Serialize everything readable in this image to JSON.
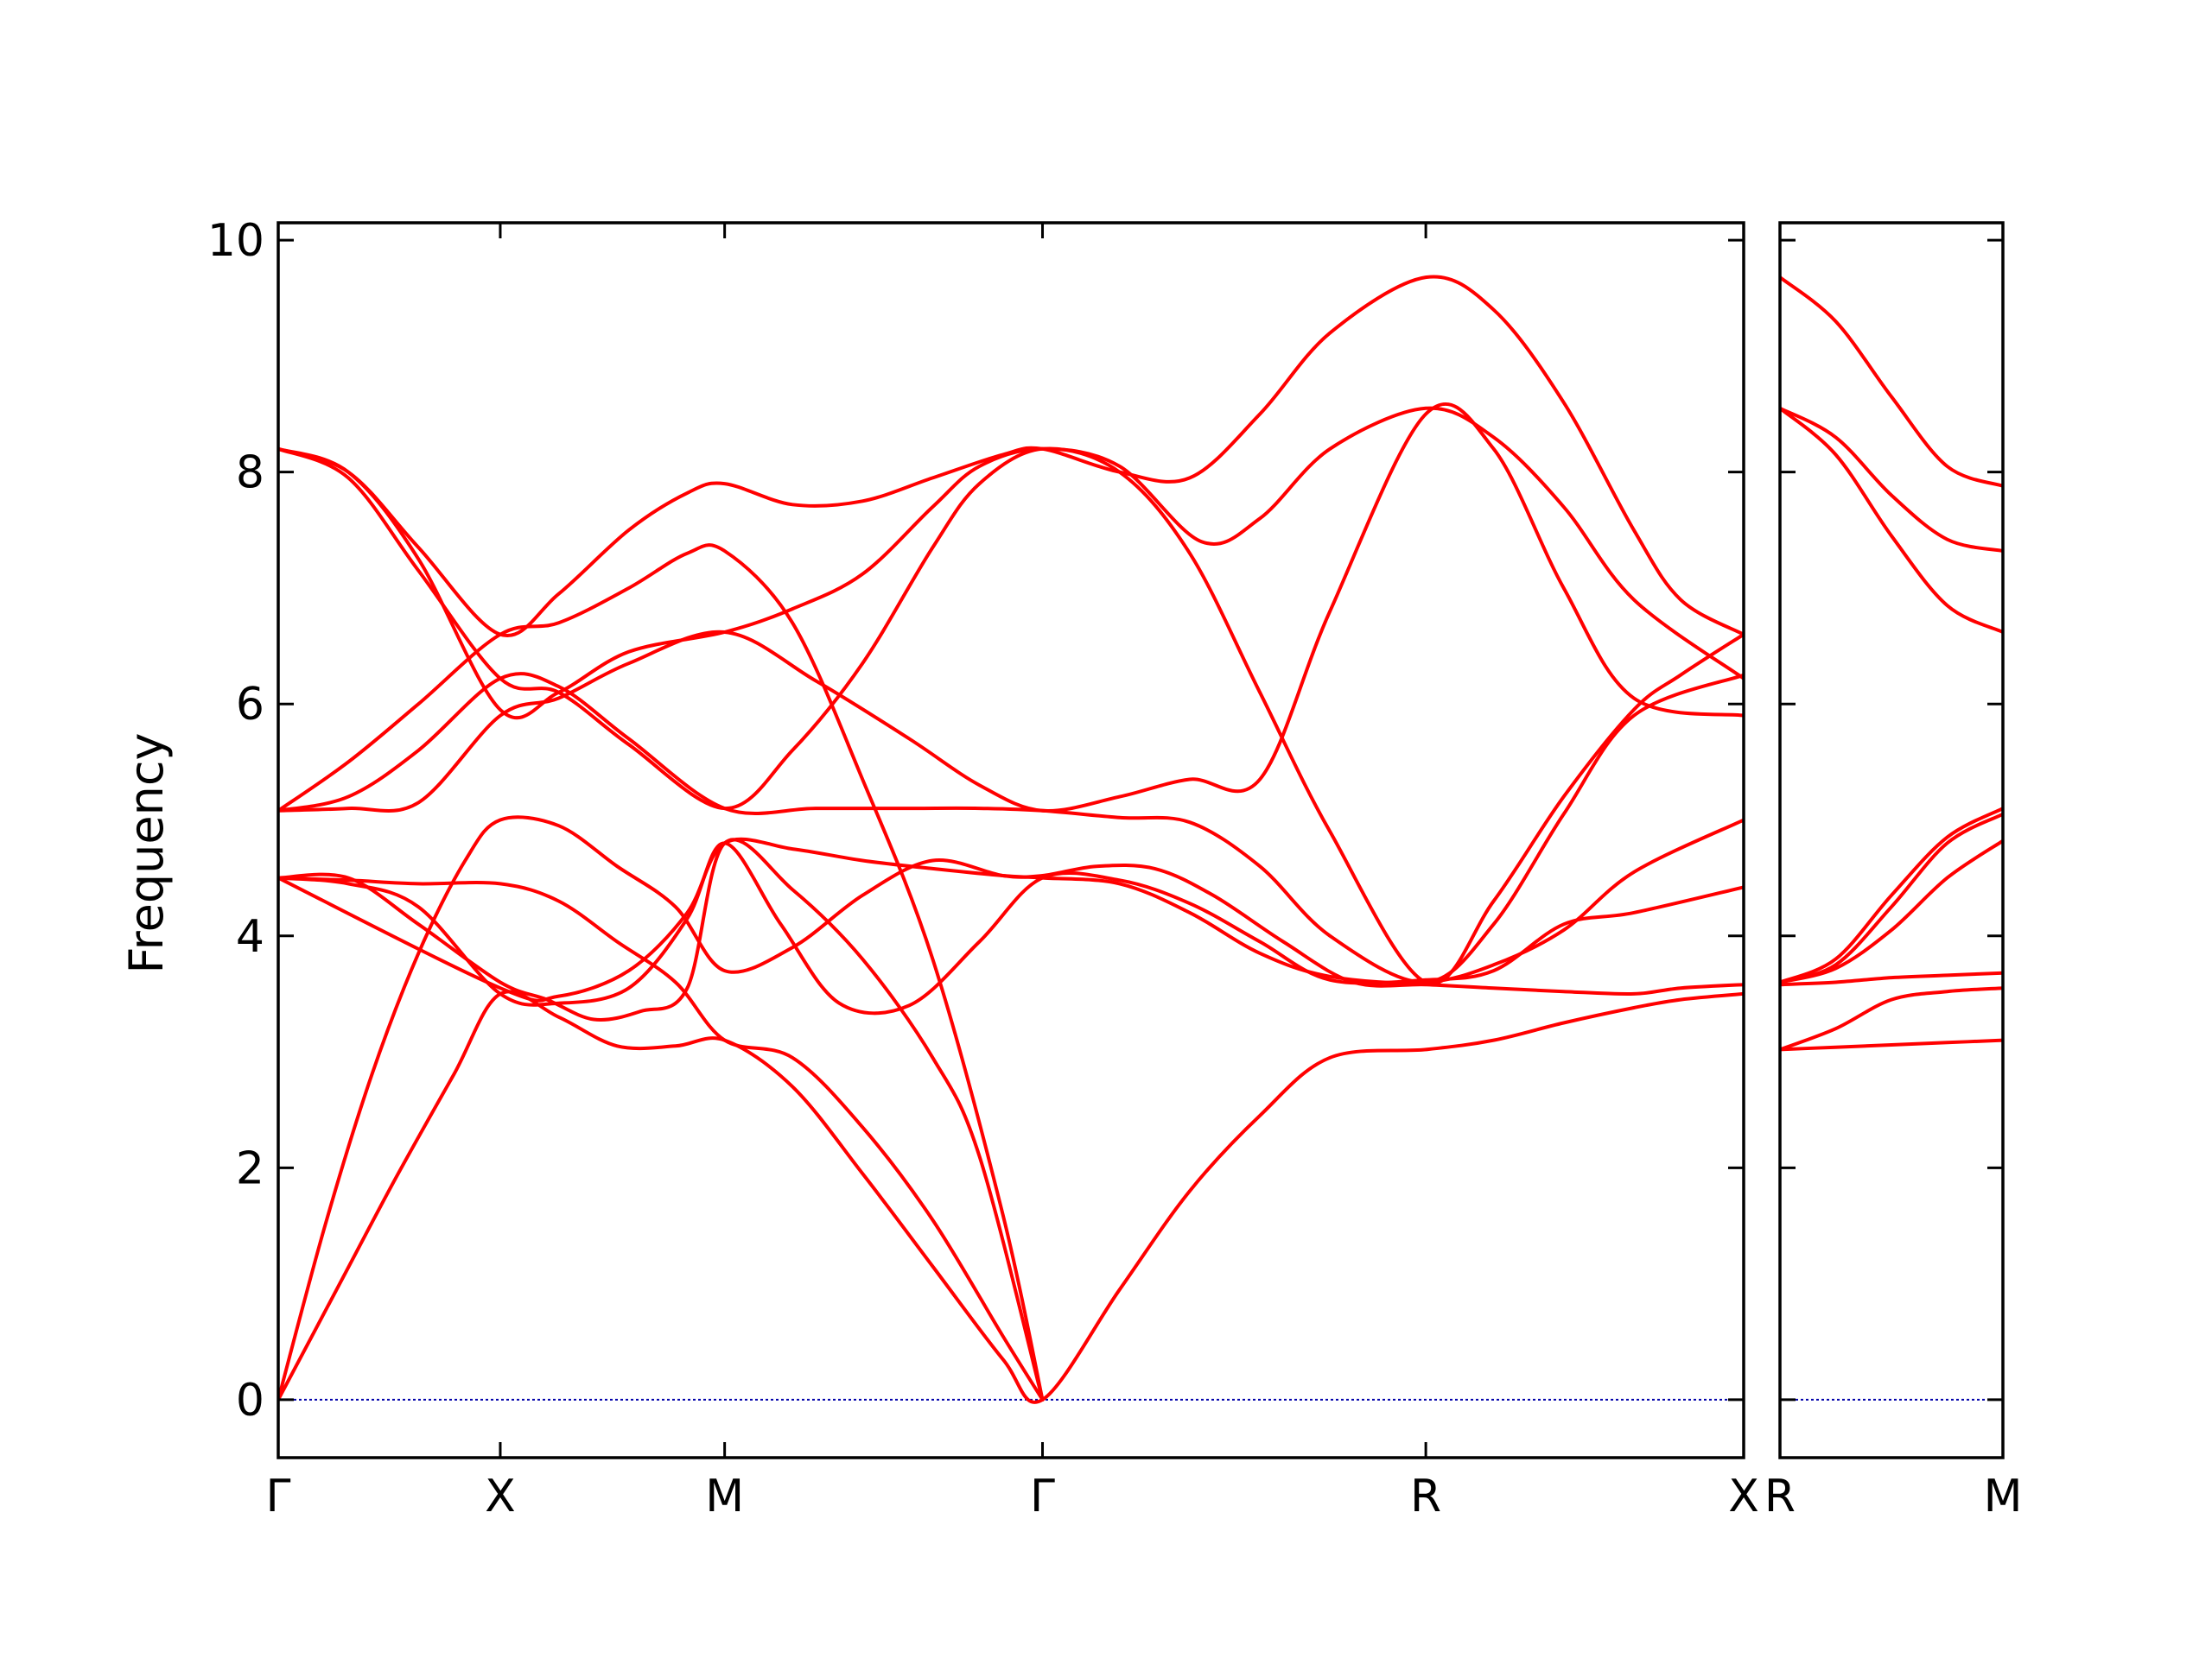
{
  "chart_data": {
    "type": "line",
    "title": "",
    "ylabel": "Frequency",
    "ylim": [
      -0.5,
      10.15
    ],
    "yticks": [
      0,
      2,
      4,
      6,
      8,
      10
    ],
    "ytick_labels": [
      "0",
      "2",
      "4",
      "6",
      "8",
      "10"
    ],
    "grid": false,
    "line_color": "#ff0000",
    "zero_line_color": "#0000aa",
    "panels": [
      {
        "id": "main",
        "path_label": "Γ-X-M-Γ-R-X",
        "xlim": [
          0,
          6.27
        ],
        "xticks": [
          0,
          0.95,
          1.91,
          3.27,
          4.91,
          6.27
        ],
        "xtick_labels": [
          "Γ",
          "X",
          "M",
          "Γ",
          "R",
          "X"
        ],
        "series": [
          {
            "x": [
              0,
              0.25,
              0.5,
              0.75,
              0.95,
              1.2,
              1.45,
              1.7,
              1.91,
              2.2,
              2.5,
              2.8,
              3.1,
              3.27,
              3.6,
              3.9,
              4.2,
              4.5,
              4.91,
              5.2,
              5.5,
              5.8,
              6.0,
              6.27
            ],
            "y": [
              0,
              0.95,
              1.9,
              2.8,
              3.5,
              3.3,
              3.05,
              3.05,
              3.1,
              2.7,
              1.95,
              1.15,
              0.35,
              0,
              0.95,
              1.8,
              2.45,
              2.95,
              3.02,
              3.1,
              3.25,
              3.38,
              3.45,
              3.5
            ]
          },
          {
            "x": [
              0,
              0.2,
              0.4,
              0.6,
              0.8,
              0.95,
              1.2,
              1.45,
              1.7,
              1.91,
              2.2,
              2.5,
              2.8,
              3.1,
              3.27,
              3.5,
              3.75,
              4.0,
              4.3,
              4.6,
              4.91,
              5.2,
              5.5,
              5.8,
              6.0,
              6.27
            ],
            "y": [
              0,
              1.5,
              2.8,
              3.85,
              4.65,
              5.0,
              4.95,
              4.6,
              4.25,
              3.7,
              3.9,
              4.35,
              4.65,
              4.52,
              4.52,
              4.6,
              4.58,
              4.35,
              3.95,
              3.6,
              3.58,
              3.55,
              3.52,
              3.5,
              3.55,
              3.58
            ]
          },
          {
            "x": [
              0,
              0.3,
              0.6,
              0.95,
              1.2,
              1.45,
              1.7,
              1.91,
              2.2,
              2.5,
              2.8,
              3.1,
              3.27
            ],
            "y": [
              4.5,
              4.48,
              4.45,
              4.45,
              4.3,
              3.95,
              3.6,
              3.1,
              2.95,
              2.35,
              1.55,
              0.55,
              0
            ]
          },
          {
            "x": [
              0,
              0.3,
              0.6,
              0.95,
              1.15,
              1.35,
              1.55,
              1.75,
              1.91,
              2.2,
              2.5,
              2.8,
              3.0,
              3.27
            ],
            "y": [
              4.5,
              4.5,
              4.1,
              3.6,
              3.45,
              3.28,
              3.35,
              3.55,
              4.8,
              4.4,
              3.8,
              2.95,
              2.1,
              0
            ]
          },
          {
            "x": [
              0,
              0.3,
              0.6,
              0.95,
              1.2,
              1.5,
              1.75,
              1.91,
              2.15,
              2.4,
              2.7,
              3.0,
              3.27,
              3.6,
              3.9,
              4.2,
              4.5,
              4.91,
              5.2,
              5.5,
              5.8,
              6.27
            ],
            "y": [
              4.5,
              4.45,
              4.25,
              3.5,
              3.42,
              3.55,
              4.15,
              4.8,
              4.1,
              3.42,
              3.4,
              3.95,
              4.5,
              4.48,
              4.28,
              3.95,
              3.62,
              3.62,
              3.7,
              4.1,
              4.2,
              4.42
            ]
          },
          {
            "x": [
              0,
              0.95,
              1.2,
              1.5,
              1.75,
              1.91,
              2.2,
              2.5,
              2.8,
              3.1,
              3.27,
              3.6,
              3.9,
              4.2,
              4.5,
              4.91,
              5.2,
              5.5,
              5.8,
              6.27
            ],
            "y": [
              4.5,
              3.55,
              3.48,
              3.7,
              4.2,
              4.8,
              4.75,
              4.65,
              4.58,
              4.52,
              4.5,
              4.45,
              4.2,
              3.85,
              3.65,
              3.6,
              3.75,
              4.05,
              4.55,
              5.0
            ]
          },
          {
            "x": [
              0,
              0.3,
              0.6,
              0.95,
              1.2,
              1.5,
              1.91,
              2.3,
              2.7,
              3.0,
              3.27,
              3.6,
              3.9,
              4.2,
              4.5,
              4.91,
              5.2,
              5.5,
              5.8,
              6.27
            ],
            "y": [
              5.08,
              5.1,
              5.15,
              5.9,
              6.05,
              6.35,
              6.62,
              6.2,
              5.7,
              5.3,
              5.08,
              5.2,
              5.35,
              5.35,
              6.8,
              8.5,
              8.2,
              7.0,
              6.05,
              5.9
            ]
          },
          {
            "x": [
              0,
              0.3,
              0.6,
              0.95,
              1.2,
              1.5,
              1.91,
              2.3,
              2.7,
              3.0,
              3.27,
              3.6,
              3.9,
              4.2,
              4.5,
              4.91,
              5.2,
              5.5,
              5.8,
              6.27
            ],
            "y": [
              5.08,
              5.2,
              5.6,
              6.22,
              6.15,
              5.7,
              5.1,
              5.1,
              5.1,
              5.1,
              5.08,
              5.02,
              4.98,
              4.6,
              4.0,
              3.6,
              4.1,
              5.05,
              5.9,
              6.25
            ]
          },
          {
            "x": [
              0,
              0.3,
              0.6,
              0.95,
              1.2,
              1.5,
              1.91,
              2.2,
              2.5,
              2.8,
              3.0,
              3.27,
              3.6,
              3.95,
              4.2,
              4.5,
              4.91,
              5.2,
              5.5,
              5.8,
              6.27
            ],
            "y": [
              8.2,
              8.0,
              7.25,
              5.95,
              6.1,
              6.45,
              6.62,
              6.82,
              7.12,
              7.7,
              8.05,
              8.2,
              8.05,
              7.4,
              7.6,
              8.2,
              8.55,
              8.3,
              7.7,
              6.9,
              6.22
            ]
          },
          {
            "x": [
              0,
              0.3,
              0.6,
              0.95,
              1.2,
              1.5,
              1.91,
              2.2,
              2.5,
              2.8,
              3.0,
              3.27,
              3.6,
              3.9,
              4.2,
              4.5,
              4.91,
              5.2,
              5.5,
              5.8,
              6.0,
              6.27
            ],
            "y": [
              8.2,
              7.95,
              7.15,
              6.22,
              6.1,
              5.65,
              5.1,
              5.6,
              6.35,
              7.35,
              7.9,
              8.2,
              8.0,
              7.3,
              6.1,
              4.9,
              3.6,
              4.3,
              5.2,
              5.95,
              6.25,
              6.6
            ]
          },
          {
            "x": [
              0,
              0.3,
              0.6,
              0.95,
              1.2,
              1.5,
              1.75,
              1.91,
              2.2,
              2.5,
              2.8,
              3.1,
              3.27,
              3.6,
              3.9,
              4.2,
              4.5,
              4.91,
              5.2,
              5.5,
              5.8,
              6.0,
              6.27
            ],
            "y": [
              8.2,
              8.0,
              7.35,
              6.6,
              6.95,
              7.5,
              7.82,
              7.9,
              7.72,
              7.75,
              7.95,
              8.15,
              8.2,
              8.0,
              7.95,
              8.5,
              9.2,
              9.68,
              9.4,
              8.6,
              7.5,
              6.9,
              6.6
            ]
          },
          {
            "x": [
              0,
              0.3,
              0.6,
              0.95,
              1.2,
              1.5,
              1.75,
              1.91,
              2.2,
              2.5,
              2.8,
              3.1,
              3.27
            ],
            "y": [
              5.08,
              5.5,
              6.0,
              6.6,
              6.7,
              7.0,
              7.3,
              7.32,
              6.7,
              5.35,
              3.8,
              1.6,
              0
            ]
          }
        ]
      },
      {
        "id": "side",
        "path_label": "R-M",
        "xlim": [
          0,
          1
        ],
        "xticks": [
          0,
          1
        ],
        "xtick_labels": [
          "R",
          "M"
        ],
        "series": [
          {
            "x": [
              0,
              0.25,
              0.5,
              0.75,
              1
            ],
            "y": [
              9.68,
              9.3,
              8.65,
              8.05,
              7.88
            ]
          },
          {
            "x": [
              0,
              0.25,
              0.5,
              0.75,
              1
            ],
            "y": [
              8.55,
              8.3,
              7.8,
              7.42,
              7.32
            ]
          },
          {
            "x": [
              0,
              0.25,
              0.5,
              0.75,
              1
            ],
            "y": [
              8.55,
              8.15,
              7.45,
              6.85,
              6.62
            ]
          },
          {
            "x": [
              0,
              0.25,
              0.5,
              0.75,
              1
            ],
            "y": [
              3.6,
              3.8,
              4.35,
              4.85,
              5.1
            ]
          },
          {
            "x": [
              0,
              0.25,
              0.5,
              0.75,
              1
            ],
            "y": [
              3.6,
              3.75,
              4.25,
              4.8,
              5.05
            ]
          },
          {
            "x": [
              0,
              0.25,
              0.5,
              0.75,
              1
            ],
            "y": [
              3.6,
              3.72,
              4.05,
              4.5,
              4.82
            ]
          },
          {
            "x": [
              0,
              0.25,
              0.5,
              0.75,
              1
            ],
            "y": [
              3.58,
              3.6,
              3.64,
              3.66,
              3.68
            ]
          },
          {
            "x": [
              0,
              0.25,
              0.5,
              0.75,
              1
            ],
            "y": [
              3.02,
              3.2,
              3.45,
              3.52,
              3.55
            ]
          },
          {
            "x": [
              0,
              0.25,
              0.5,
              0.75,
              1
            ],
            "y": [
              3.02,
              3.04,
              3.06,
              3.08,
              3.1
            ]
          }
        ]
      }
    ]
  }
}
